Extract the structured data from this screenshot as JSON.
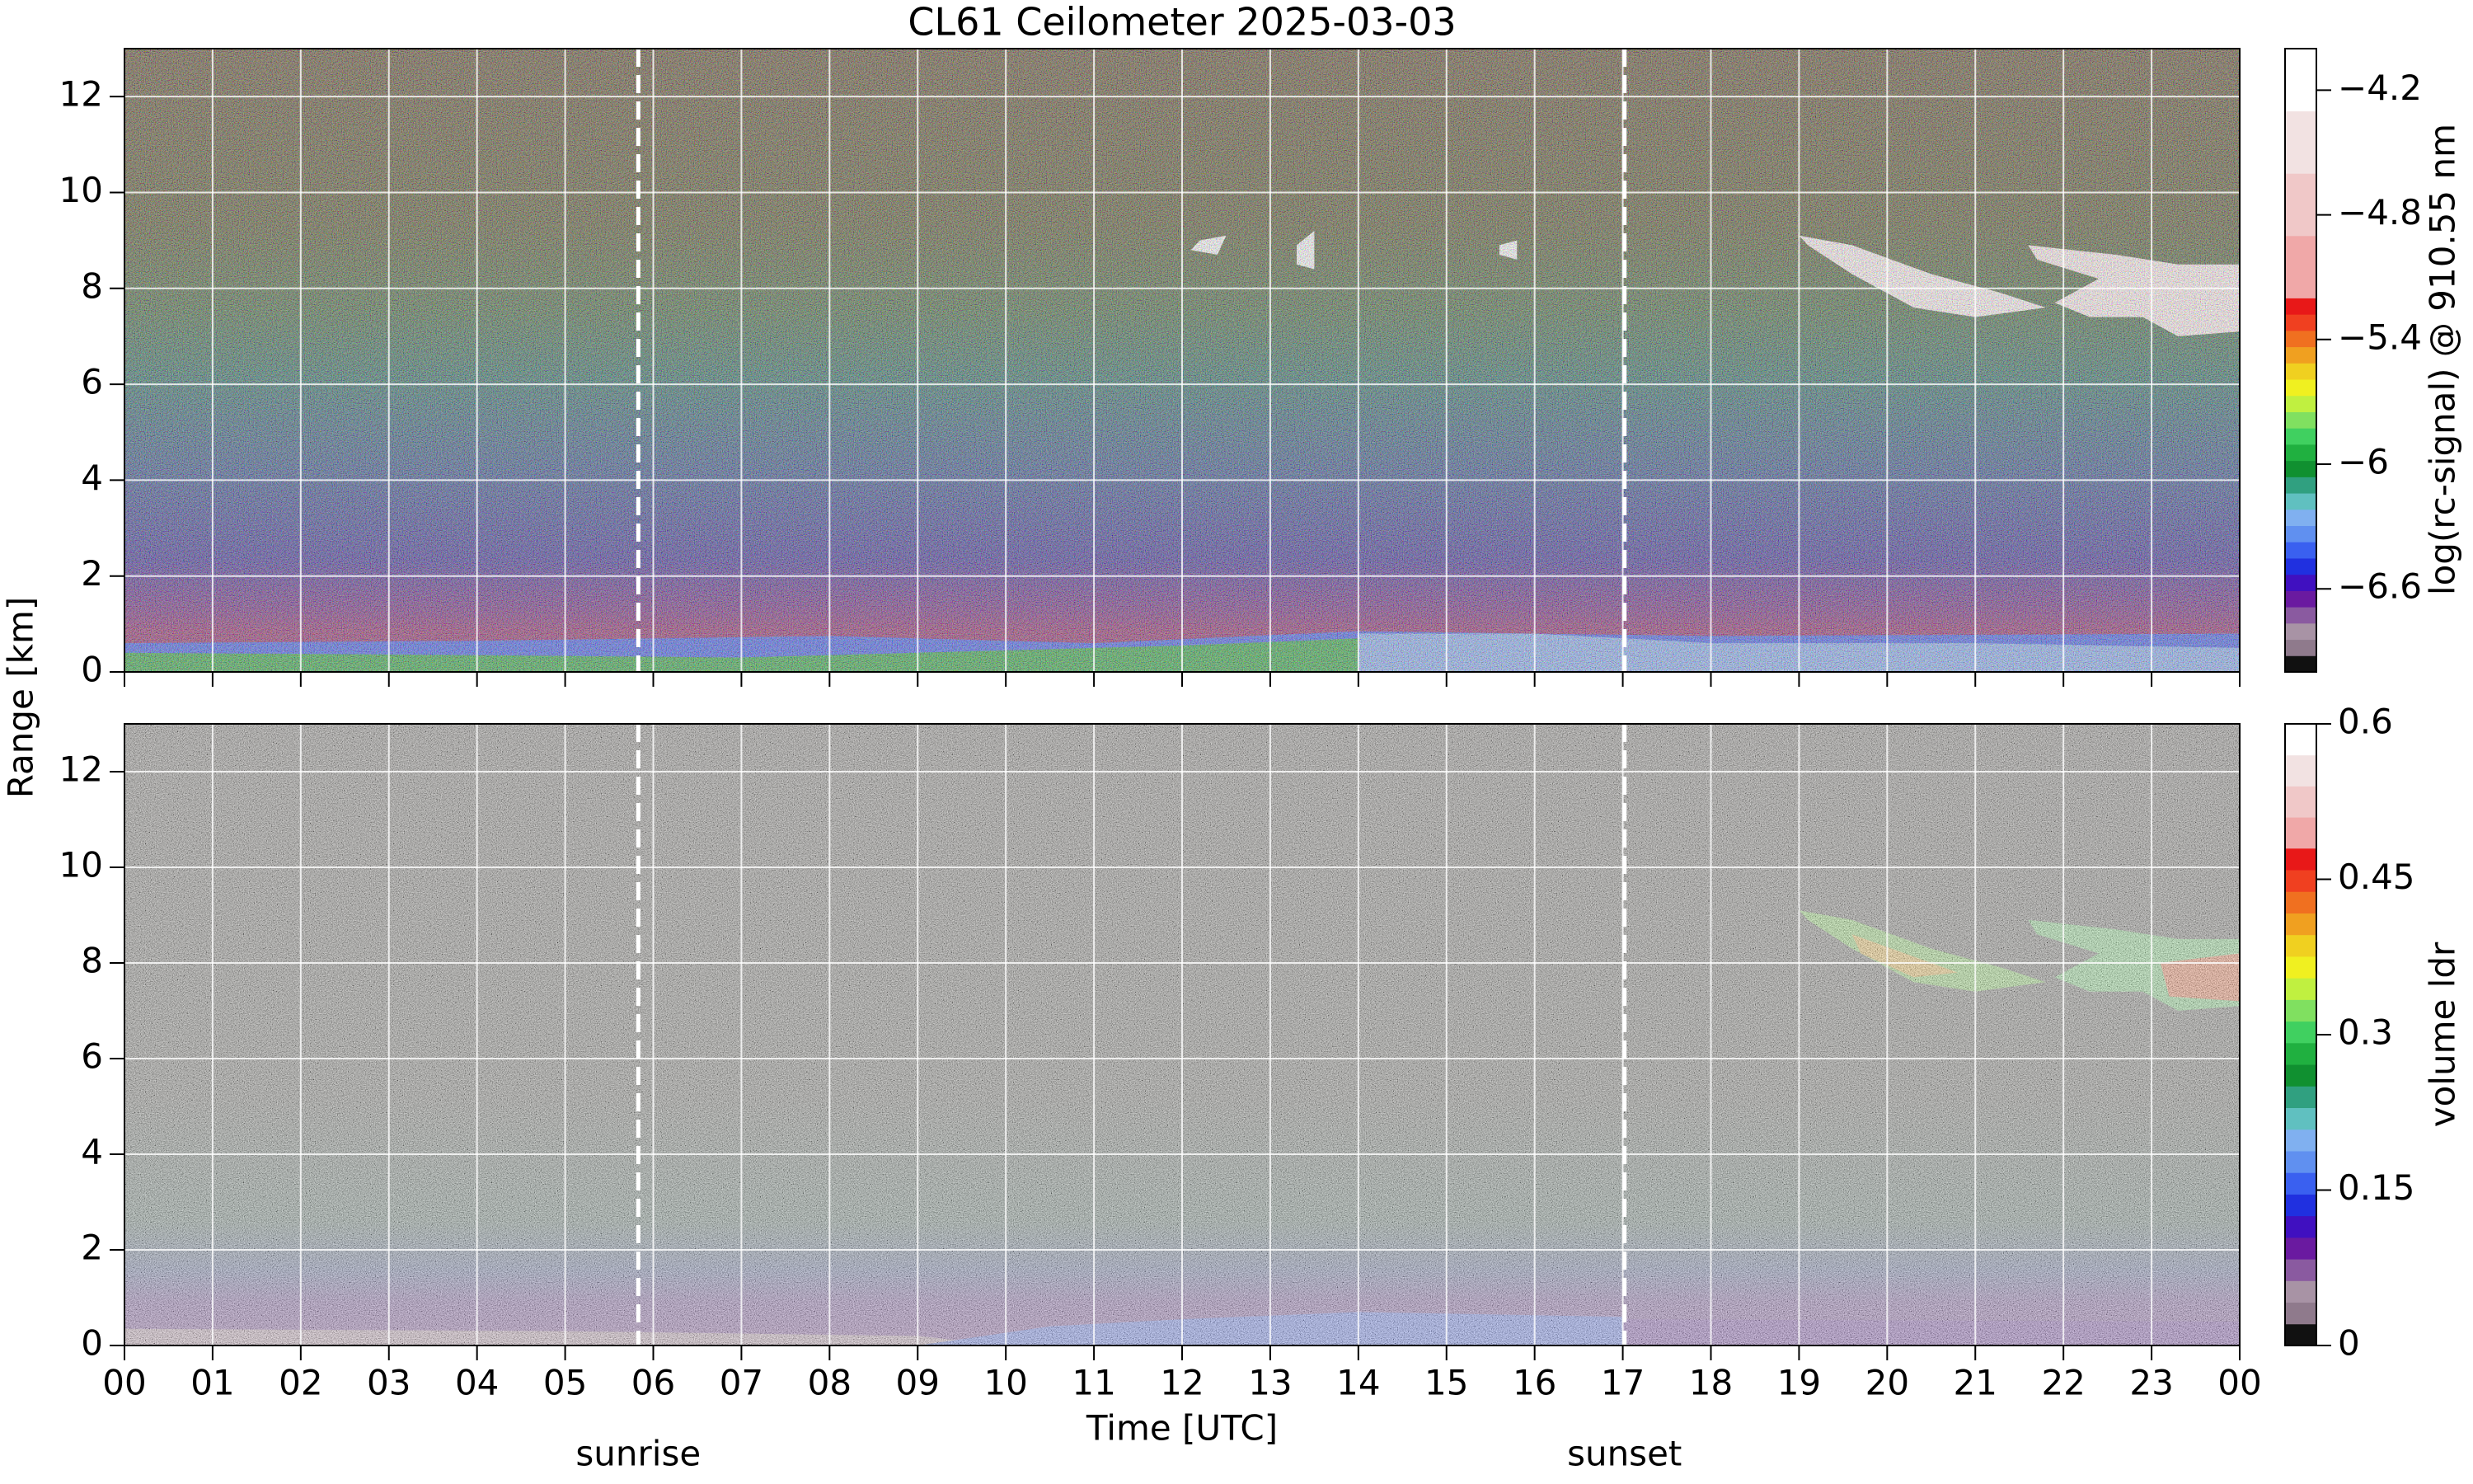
{
  "chart_data": [
    {
      "type": "heatmap",
      "title": "CL61 Ceilometer 2025-03-03",
      "ylabel": "Range [km]",
      "ylim": [
        0,
        13
      ],
      "yticks": [
        0,
        2,
        4,
        6,
        8,
        10,
        12
      ],
      "colorbar_label": "log(rc-signal) @ 910.55 nm",
      "clim": [
        -7,
        -4
      ],
      "cticks": [
        {
          "value": -4.2,
          "label": "−4.2"
        },
        {
          "value": -4.8,
          "label": "−4.8"
        },
        {
          "value": -5.4,
          "label": "−5.4"
        },
        {
          "value": -6,
          "label": "−6"
        },
        {
          "value": -6.6,
          "label": "−6.6"
        }
      ],
      "grid": true
    },
    {
      "type": "heatmap",
      "xlabel": "Time [UTC]",
      "xlim": [
        0,
        24
      ],
      "xticks": [
        {
          "value": 0,
          "label": "00"
        },
        {
          "value": 1,
          "label": "01"
        },
        {
          "value": 2,
          "label": "02"
        },
        {
          "value": 3,
          "label": "03"
        },
        {
          "value": 4,
          "label": "04"
        },
        {
          "value": 5,
          "label": "05"
        },
        {
          "value": 6,
          "label": "06"
        },
        {
          "value": 7,
          "label": "07"
        },
        {
          "value": 8,
          "label": "08"
        },
        {
          "value": 9,
          "label": "09"
        },
        {
          "value": 10,
          "label": "10"
        },
        {
          "value": 11,
          "label": "11"
        },
        {
          "value": 12,
          "label": "12"
        },
        {
          "value": 13,
          "label": "13"
        },
        {
          "value": 14,
          "label": "14"
        },
        {
          "value": 15,
          "label": "15"
        },
        {
          "value": 16,
          "label": "16"
        },
        {
          "value": 17,
          "label": "17"
        },
        {
          "value": 18,
          "label": "18"
        },
        {
          "value": 19,
          "label": "19"
        },
        {
          "value": 20,
          "label": "20"
        },
        {
          "value": 21,
          "label": "21"
        },
        {
          "value": 22,
          "label": "22"
        },
        {
          "value": 23,
          "label": "23"
        },
        {
          "value": 24,
          "label": "00"
        }
      ],
      "ylim": [
        0,
        13
      ],
      "yticks": [
        0,
        2,
        4,
        6,
        8,
        10,
        12
      ],
      "colorbar_label": "volume ldr",
      "clim": [
        0,
        0.6
      ],
      "cticks": [
        0,
        0.15,
        0.3,
        0.45,
        0.6
      ],
      "grid": true,
      "vlines": [
        {
          "x": 5.83,
          "label": "sunrise"
        },
        {
          "x": 17.02,
          "label": "sunset"
        }
      ]
    }
  ]
}
